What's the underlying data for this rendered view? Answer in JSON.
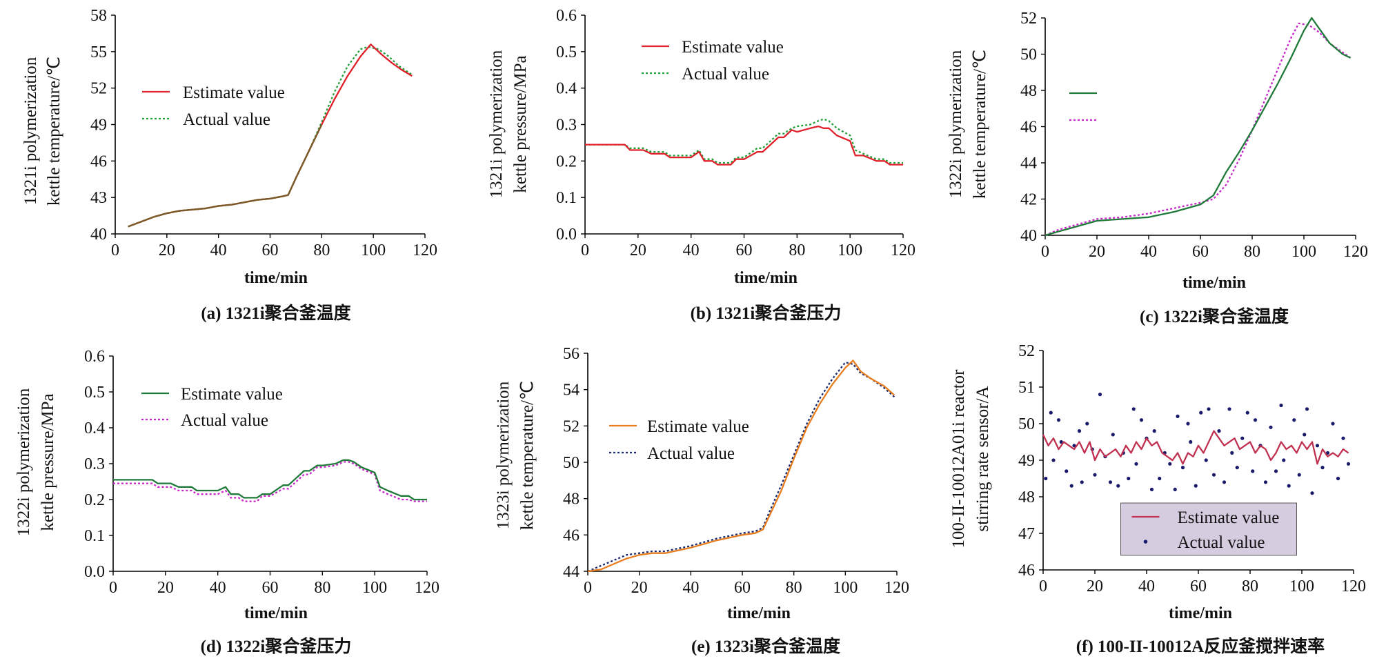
{
  "chart_data": [
    {
      "type": "line",
      "ylabel": [
        "1321i polymerization",
        "kettle temperature/℃"
      ],
      "xlabel": "time/min",
      "caption": "(a) 1321i聚合釜温度",
      "xlim": [
        0,
        120
      ],
      "ylim": [
        40,
        58
      ],
      "xticks": [
        "0",
        "20",
        "40",
        "60",
        "80",
        "100",
        "120"
      ],
      "yticks": [
        "40",
        "43",
        "46",
        "49",
        "52",
        "55",
        "58"
      ],
      "grid": false,
      "legend_position": "left",
      "colors": {
        "estimate": "#e0202a",
        "actual": "#22a03a",
        "overlap": "#7a5a28"
      },
      "series": [
        {
          "name": "Estimate value",
          "x": [
            5,
            10,
            15,
            20,
            25,
            30,
            35,
            40,
            45,
            50,
            55,
            60,
            65,
            67,
            70,
            75,
            80,
            85,
            90,
            95,
            99,
            103,
            107,
            111,
            115
          ],
          "y": [
            40.6,
            41.0,
            41.4,
            41.7,
            41.9,
            42.0,
            42.1,
            42.3,
            42.4,
            42.6,
            42.8,
            42.9,
            43.1,
            43.2,
            44.6,
            46.8,
            49.0,
            51.1,
            53.0,
            54.6,
            55.6,
            54.8,
            54.1,
            53.5,
            53.0
          ]
        },
        {
          "name": "Actual value",
          "x": [
            5,
            10,
            15,
            20,
            25,
            30,
            35,
            40,
            45,
            50,
            55,
            60,
            65,
            67,
            70,
            75,
            80,
            85,
            90,
            95,
            98,
            102,
            106,
            110,
            115
          ],
          "y": [
            40.6,
            41.0,
            41.4,
            41.7,
            41.9,
            42.0,
            42.1,
            42.3,
            42.4,
            42.6,
            42.8,
            42.9,
            43.1,
            43.2,
            44.6,
            46.8,
            49.2,
            51.7,
            53.8,
            55.2,
            55.4,
            55.2,
            54.6,
            53.8,
            53.1
          ]
        }
      ]
    },
    {
      "type": "line",
      "ylabel": [
        "1321i polymerization",
        "kettle pressure/MPa"
      ],
      "xlabel": "time/min",
      "caption": "(b) 1321i聚合釜压力",
      "xlim": [
        0,
        120
      ],
      "ylim": [
        0,
        0.6
      ],
      "xticks": [
        "0",
        "20",
        "40",
        "60",
        "80",
        "100",
        "120"
      ],
      "yticks": [
        "0.0",
        "0.1",
        "0.2",
        "0.3",
        "0.4",
        "0.5",
        "0.6"
      ],
      "grid": false,
      "legend_position": "top",
      "colors": {
        "estimate": "#e0202a",
        "actual": "#22a03a"
      },
      "series": [
        {
          "name": "Estimate value",
          "x": [
            0,
            15,
            17,
            22,
            25,
            30,
            32,
            37,
            40,
            43,
            45,
            48,
            50,
            55,
            57,
            60,
            65,
            67,
            70,
            73,
            75,
            78,
            80,
            85,
            88,
            90,
            92,
            95,
            100,
            102,
            105,
            110,
            113,
            115,
            120
          ],
          "y": [
            0.245,
            0.245,
            0.23,
            0.23,
            0.22,
            0.22,
            0.21,
            0.21,
            0.21,
            0.225,
            0.2,
            0.2,
            0.19,
            0.19,
            0.205,
            0.205,
            0.225,
            0.225,
            0.245,
            0.265,
            0.265,
            0.285,
            0.28,
            0.29,
            0.295,
            0.29,
            0.29,
            0.27,
            0.255,
            0.215,
            0.215,
            0.2,
            0.2,
            0.19,
            0.19
          ]
        },
        {
          "name": "Actual value",
          "x": [
            0,
            15,
            17,
            22,
            25,
            30,
            32,
            37,
            40,
            43,
            45,
            48,
            50,
            55,
            57,
            60,
            65,
            67,
            70,
            73,
            75,
            78,
            80,
            85,
            88,
            90,
            92,
            95,
            100,
            102,
            105,
            110,
            113,
            115,
            120
          ],
          "y": [
            0.245,
            0.245,
            0.235,
            0.235,
            0.225,
            0.225,
            0.215,
            0.215,
            0.215,
            0.23,
            0.205,
            0.205,
            0.195,
            0.195,
            0.21,
            0.21,
            0.235,
            0.235,
            0.255,
            0.275,
            0.275,
            0.29,
            0.295,
            0.3,
            0.31,
            0.315,
            0.31,
            0.29,
            0.27,
            0.23,
            0.22,
            0.205,
            0.205,
            0.195,
            0.195
          ]
        }
      ]
    },
    {
      "type": "line",
      "ylabel": [
        "1322i polymerization",
        "kettle temperature/℃"
      ],
      "xlabel": "time/min",
      "caption": "(c) 1322i聚合釜温度",
      "xlim": [
        0,
        120
      ],
      "ylim": [
        40,
        52
      ],
      "xticks": [
        "0",
        "20",
        "40",
        "60",
        "80",
        "100",
        "120"
      ],
      "yticks": [
        "40",
        "42",
        "44",
        "46",
        "48",
        "50",
        "52"
      ],
      "grid": false,
      "legend_position": "left",
      "colors": {
        "estimate": "#1f7a3a",
        "actual": "#c826c8"
      },
      "series": [
        {
          "name": "",
          "x": [
            0,
            5,
            10,
            20,
            30,
            40,
            50,
            60,
            65,
            70,
            75,
            80,
            85,
            90,
            95,
            100,
            103,
            106,
            110,
            115,
            118
          ],
          "y": [
            40.0,
            40.2,
            40.4,
            40.8,
            40.9,
            41.0,
            41.3,
            41.7,
            42.2,
            43.5,
            44.6,
            45.8,
            47.1,
            48.4,
            49.8,
            51.3,
            52.0,
            51.4,
            50.6,
            50.0,
            49.8
          ]
        },
        {
          "name": "",
          "x": [
            0,
            5,
            10,
            20,
            30,
            40,
            50,
            60,
            65,
            70,
            75,
            80,
            85,
            90,
            95,
            98,
            102,
            106,
            110,
            115,
            118
          ],
          "y": [
            40.0,
            40.3,
            40.5,
            40.9,
            41.0,
            41.2,
            41.5,
            41.8,
            42.0,
            42.8,
            44.2,
            45.8,
            47.5,
            49.2,
            50.9,
            51.7,
            51.6,
            51.2,
            50.6,
            50.1,
            49.8
          ]
        }
      ]
    },
    {
      "type": "line",
      "ylabel": [
        "1322i polymerization",
        "kettle pressure/MPa"
      ],
      "xlabel": "time/min",
      "caption": "(d) 1322i聚合釜压力",
      "xlim": [
        0,
        120
      ],
      "ylim": [
        0,
        0.6
      ],
      "xticks": [
        "0",
        "20",
        "40",
        "60",
        "80",
        "100",
        "120"
      ],
      "yticks": [
        "0.0",
        "0.1",
        "0.2",
        "0.3",
        "0.4",
        "0.5",
        "0.6"
      ],
      "grid": false,
      "legend_position": "top-left",
      "colors": {
        "estimate": "#1f7a3a",
        "actual": "#c826c8"
      },
      "series": [
        {
          "name": "Estimate value",
          "x": [
            0,
            15,
            17,
            22,
            25,
            30,
            32,
            37,
            40,
            43,
            45,
            48,
            50,
            55,
            57,
            60,
            65,
            67,
            70,
            73,
            75,
            78,
            80,
            85,
            88,
            90,
            92,
            95,
            100,
            102,
            105,
            110,
            113,
            115,
            120
          ],
          "y": [
            0.255,
            0.255,
            0.245,
            0.245,
            0.235,
            0.235,
            0.225,
            0.225,
            0.225,
            0.235,
            0.215,
            0.215,
            0.205,
            0.205,
            0.215,
            0.215,
            0.24,
            0.24,
            0.26,
            0.28,
            0.28,
            0.295,
            0.295,
            0.3,
            0.31,
            0.31,
            0.305,
            0.29,
            0.275,
            0.235,
            0.225,
            0.21,
            0.21,
            0.2,
            0.2
          ]
        },
        {
          "name": "Actual value",
          "x": [
            0,
            15,
            17,
            22,
            25,
            30,
            32,
            37,
            40,
            43,
            45,
            48,
            50,
            55,
            57,
            60,
            65,
            67,
            70,
            73,
            75,
            78,
            80,
            85,
            88,
            90,
            92,
            95,
            100,
            102,
            105,
            110,
            113,
            115,
            120
          ],
          "y": [
            0.245,
            0.245,
            0.235,
            0.235,
            0.225,
            0.225,
            0.215,
            0.215,
            0.215,
            0.225,
            0.205,
            0.205,
            0.195,
            0.195,
            0.21,
            0.21,
            0.23,
            0.23,
            0.25,
            0.27,
            0.27,
            0.29,
            0.29,
            0.295,
            0.305,
            0.305,
            0.3,
            0.285,
            0.27,
            0.225,
            0.215,
            0.2,
            0.2,
            0.195,
            0.195
          ]
        }
      ]
    },
    {
      "type": "line",
      "ylabel": [
        "1323i polymerization",
        "kettle temperature/℃"
      ],
      "xlabel": "time/min",
      "caption": "(e) 1323i聚合釜温度",
      "xlim": [
        0,
        120
      ],
      "ylim": [
        44,
        56
      ],
      "xticks": [
        "0",
        "20",
        "40",
        "60",
        "80",
        "100",
        "120"
      ],
      "yticks": [
        "44",
        "46",
        "48",
        "50",
        "52",
        "54",
        "56"
      ],
      "grid": false,
      "legend_position": "left",
      "colors": {
        "estimate": "#e87d1e",
        "actual": "#1a2a6c"
      },
      "series": [
        {
          "name": "Estimate value",
          "x": [
            0,
            5,
            10,
            15,
            20,
            25,
            30,
            40,
            50,
            60,
            65,
            68,
            70,
            75,
            80,
            85,
            90,
            95,
            100,
            103,
            106,
            110,
            115,
            119
          ],
          "y": [
            44.0,
            44.1,
            44.4,
            44.7,
            44.9,
            45.0,
            45.0,
            45.3,
            45.7,
            46.0,
            46.1,
            46.3,
            46.9,
            48.4,
            50.2,
            51.9,
            53.2,
            54.3,
            55.2,
            55.6,
            55.0,
            54.6,
            54.2,
            53.7
          ]
        },
        {
          "name": "Actual value",
          "x": [
            0,
            5,
            10,
            15,
            20,
            25,
            30,
            40,
            50,
            60,
            65,
            68,
            70,
            75,
            80,
            85,
            90,
            95,
            100,
            103,
            106,
            110,
            115,
            119
          ],
          "y": [
            44.0,
            44.3,
            44.6,
            44.9,
            45.0,
            45.1,
            45.1,
            45.4,
            45.8,
            46.1,
            46.2,
            46.4,
            47.1,
            48.7,
            50.4,
            52.1,
            53.5,
            54.6,
            55.5,
            55.4,
            54.9,
            54.6,
            54.1,
            53.6
          ]
        }
      ]
    },
    {
      "type": "line",
      "ylabel": [
        "100-II-10012A01i reactor",
        "stirring rate sensor/A"
      ],
      "xlabel": "time/min",
      "caption": "(f) 100-II-10012A反应釜搅拌速率",
      "xlim": [
        0,
        120
      ],
      "ylim": [
        46,
        52
      ],
      "xticks": [
        "0",
        "20",
        "40",
        "60",
        "80",
        "100",
        "120"
      ],
      "yticks": [
        "46",
        "47",
        "48",
        "49",
        "50",
        "51",
        "52"
      ],
      "grid": false,
      "legend_position": "bottom-center",
      "colors": {
        "estimate": "#c03050",
        "actual": "#1a1a6a",
        "legend_bg": "#d6cce0"
      },
      "series": [
        {
          "name": "Estimate value",
          "style": "line",
          "x": [
            0,
            2,
            4,
            6,
            8,
            10,
            12,
            14,
            16,
            18,
            20,
            22,
            24,
            26,
            28,
            30,
            32,
            34,
            36,
            38,
            40,
            42,
            44,
            46,
            48,
            50,
            52,
            54,
            56,
            58,
            60,
            62,
            64,
            66,
            68,
            70,
            72,
            74,
            76,
            78,
            80,
            82,
            84,
            86,
            88,
            90,
            92,
            94,
            96,
            98,
            100,
            102,
            104,
            106,
            108,
            110,
            112,
            114,
            116,
            118
          ],
          "y": [
            49.7,
            49.4,
            49.6,
            49.3,
            49.5,
            49.4,
            49.3,
            49.5,
            49.2,
            49.5,
            49.0,
            49.3,
            49.1,
            49.2,
            49.3,
            49.1,
            49.4,
            49.2,
            49.5,
            49.3,
            49.6,
            49.4,
            49.5,
            49.2,
            49.1,
            49.0,
            49.2,
            48.9,
            49.2,
            49.1,
            49.4,
            49.2,
            49.5,
            49.8,
            49.6,
            49.4,
            49.5,
            49.6,
            49.3,
            49.4,
            49.5,
            49.2,
            49.4,
            49.3,
            49.0,
            49.2,
            49.5,
            49.3,
            49.4,
            49.2,
            49.5,
            49.3,
            49.5,
            48.9,
            49.3,
            49.1,
            49.2,
            49.1,
            49.3,
            49.2
          ]
        },
        {
          "name": "Actual value",
          "style": "dots",
          "x": [
            1,
            3,
            4,
            6,
            7,
            9,
            11,
            12,
            14,
            15,
            17,
            19,
            20,
            22,
            24,
            26,
            27,
            29,
            31,
            33,
            35,
            36,
            38,
            40,
            42,
            43,
            45,
            47,
            49,
            51,
            52,
            54,
            56,
            57,
            59,
            61,
            63,
            64,
            66,
            68,
            70,
            72,
            73,
            75,
            77,
            79,
            81,
            82,
            84,
            86,
            88,
            90,
            92,
            93,
            95,
            97,
            99,
            101,
            102,
            104,
            106,
            108,
            110,
            112,
            114,
            116,
            118
          ],
          "y": [
            48.5,
            50.3,
            49.0,
            50.1,
            49.5,
            48.7,
            48.3,
            49.4,
            49.8,
            48.4,
            50.0,
            49.3,
            48.6,
            50.8,
            49.1,
            48.4,
            49.7,
            48.3,
            49.2,
            48.5,
            50.4,
            48.9,
            50.1,
            49.6,
            48.2,
            49.8,
            48.5,
            49.2,
            48.9,
            48.2,
            50.2,
            48.8,
            50.0,
            49.5,
            48.3,
            50.3,
            49.0,
            50.4,
            48.6,
            49.8,
            48.4,
            50.4,
            49.2,
            48.8,
            49.6,
            50.3,
            48.7,
            50.1,
            49.4,
            48.4,
            49.9,
            48.7,
            50.5,
            49.0,
            48.3,
            50.1,
            48.6,
            49.7,
            50.4,
            48.1,
            49.4,
            48.8,
            49.2,
            50.0,
            48.5,
            49.6,
            48.9
          ]
        }
      ]
    }
  ]
}
